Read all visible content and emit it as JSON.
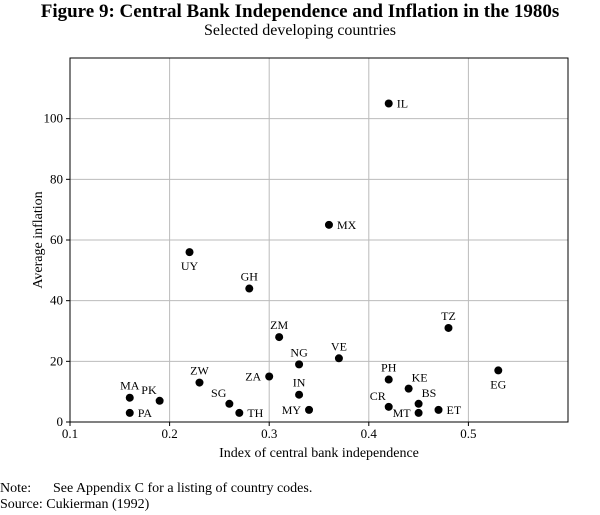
{
  "header": {
    "title": "Figure 9: Central Bank Independence and Inflation in the 1980s",
    "subtitle": "Selected developing countries"
  },
  "footer": {
    "note_label": "Note:",
    "note_text": "See Appendix C for a listing of country codes.",
    "source": "Source: Cukierman (1992)"
  },
  "chart_data": {
    "type": "scatter",
    "title": "Figure 9: Central Bank Independence and Inflation in the 1980s",
    "subtitle": "Selected developing countries",
    "xlabel": "Index of central bank independence",
    "ylabel": "Average inflation",
    "xlim": [
      0.1,
      0.6
    ],
    "ylim": [
      0,
      120
    ],
    "xticks": [
      0.1,
      0.2,
      0.3,
      0.4,
      0.5
    ],
    "xtick_labels": [
      "0.1",
      "0.2",
      "0.3",
      "0.4",
      "0.5"
    ],
    "yticks": [
      0,
      20,
      40,
      60,
      80,
      100
    ],
    "ytick_labels": [
      "0",
      "20",
      "40",
      "60",
      "80",
      "100"
    ],
    "grid": true,
    "points": [
      {
        "label": "IL",
        "x": 0.42,
        "y": 105,
        "pos": "right"
      },
      {
        "label": "MX",
        "x": 0.36,
        "y": 65,
        "pos": "right"
      },
      {
        "label": "UY",
        "x": 0.22,
        "y": 56,
        "pos": "below"
      },
      {
        "label": "GH",
        "x": 0.28,
        "y": 44,
        "pos": "above"
      },
      {
        "label": "TZ",
        "x": 0.48,
        "y": 31,
        "pos": "above"
      },
      {
        "label": "ZM",
        "x": 0.31,
        "y": 28,
        "pos": "above"
      },
      {
        "label": "VE",
        "x": 0.37,
        "y": 21,
        "pos": "above"
      },
      {
        "label": "NG",
        "x": 0.33,
        "y": 19,
        "pos": "above"
      },
      {
        "label": "EG",
        "x": 0.53,
        "y": 17,
        "pos": "below"
      },
      {
        "label": "PH",
        "x": 0.42,
        "y": 14,
        "pos": "above"
      },
      {
        "label": "ZA",
        "x": 0.3,
        "y": 15,
        "pos": "left"
      },
      {
        "label": "ZW",
        "x": 0.23,
        "y": 13,
        "pos": "above"
      },
      {
        "label": "KE",
        "x": 0.44,
        "y": 11,
        "pos": "aboveright"
      },
      {
        "label": "IN",
        "x": 0.33,
        "y": 9,
        "pos": "above"
      },
      {
        "label": "MA",
        "x": 0.16,
        "y": 8,
        "pos": "above"
      },
      {
        "label": "PK",
        "x": 0.19,
        "y": 7,
        "pos": "aboveleft"
      },
      {
        "label": "SG",
        "x": 0.26,
        "y": 6,
        "pos": "aboveleft"
      },
      {
        "label": "BS",
        "x": 0.45,
        "y": 6,
        "pos": "aboveright"
      },
      {
        "label": "CR",
        "x": 0.42,
        "y": 5,
        "pos": "aboveleft"
      },
      {
        "label": "MY",
        "x": 0.34,
        "y": 4,
        "pos": "left"
      },
      {
        "label": "ET",
        "x": 0.47,
        "y": 4,
        "pos": "right"
      },
      {
        "label": "PA",
        "x": 0.16,
        "y": 3,
        "pos": "right"
      },
      {
        "label": "TH",
        "x": 0.27,
        "y": 3,
        "pos": "right"
      },
      {
        "label": "MT",
        "x": 0.45,
        "y": 3,
        "pos": "left"
      }
    ]
  }
}
